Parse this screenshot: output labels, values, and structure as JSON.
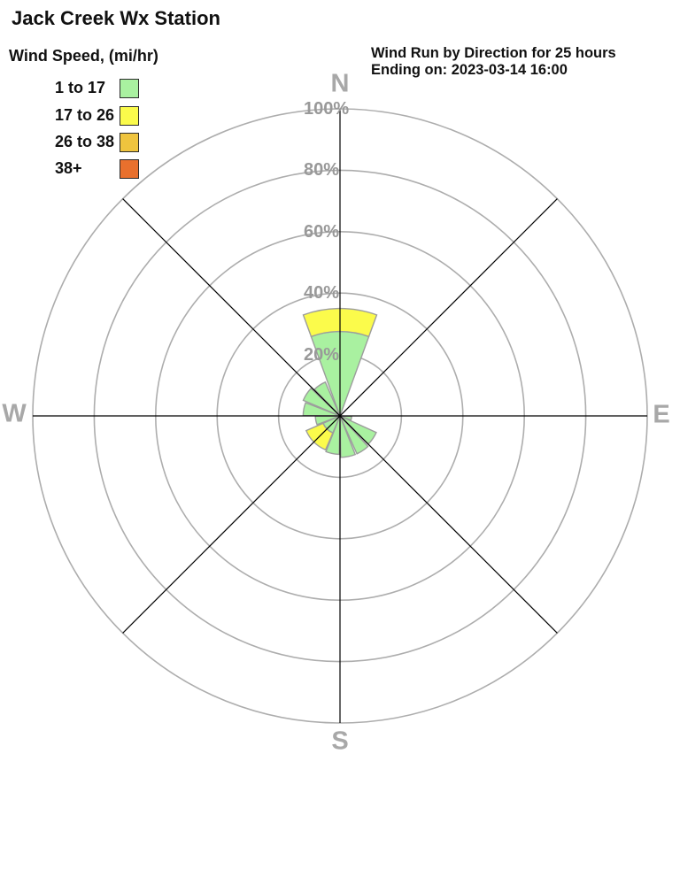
{
  "title": "Jack Creek Wx Station",
  "legend": {
    "title": "Wind Speed, (mi/hr)",
    "bins": [
      {
        "label": "1 to 17",
        "color": "#a9f1a0"
      },
      {
        "label": "17 to 26",
        "color": "#fbfb4b"
      },
      {
        "label": "26 to 38",
        "color": "#efc43e"
      },
      {
        "label": "38+",
        "color": "#e8702d"
      }
    ]
  },
  "header": {
    "line1": "Wind Run by Direction for 25 hours",
    "line2": "Ending on: 2023-03-14 16:00"
  },
  "chart_data": {
    "type": "wind-rose",
    "title": "Wind Run by Direction for 25 hours Ending on: 2023-03-14 16:00",
    "units": "percent of total wind run",
    "speed_bins_mi_hr": [
      "1 to 17",
      "17 to 26",
      "26 to 38",
      "38+"
    ],
    "ring_labels": [
      "20%",
      "40%",
      "60%",
      "80%",
      "100%"
    ],
    "ring_values": [
      20,
      40,
      60,
      80,
      100
    ],
    "max_pct": 100,
    "grid": {
      "rings": true,
      "axes_deg": [
        0,
        45,
        90,
        135,
        180,
        225,
        270,
        315
      ]
    },
    "compass_labels": {
      "n": "N",
      "e": "E",
      "s": "S",
      "w": "W"
    },
    "petals": [
      {
        "dir": "N",
        "start": -20,
        "end": 20,
        "segments": [
          {
            "bin": "1 to 17",
            "pct": 27.5
          },
          {
            "bin": "17 to 26",
            "pct": 7.5
          }
        ]
      },
      {
        "dir": "E",
        "start": 92,
        "end": 111,
        "segments": [
          {
            "bin": "1 to 17",
            "pct": 3.8
          }
        ]
      },
      {
        "dir": "SE-upper",
        "start": 114.5,
        "end": 135,
        "segments": [
          {
            "bin": "1 to 17",
            "pct": 13
          }
        ]
      },
      {
        "dir": "SE-lower",
        "start": 137.5,
        "end": 156,
        "segments": [
          {
            "bin": "1 to 17",
            "pct": 13.5
          }
        ]
      },
      {
        "dir": "SSE",
        "start": 158.5,
        "end": 179,
        "segments": [
          {
            "bin": "1 to 17",
            "pct": 13.5
          }
        ]
      },
      {
        "dir": "SSW",
        "start": 181,
        "end": 201.5,
        "segments": [
          {
            "bin": "1 to 17",
            "pct": 12.5
          }
        ]
      },
      {
        "dir": "SW",
        "start": 203,
        "end": 246.5,
        "segments": [
          {
            "bin": "1 to 17",
            "pct": 6
          },
          {
            "bin": "17 to 26",
            "pct": 6
          }
        ]
      },
      {
        "dir": "W-lower",
        "start": 249,
        "end": 269.5,
        "segments": [
          {
            "bin": "1 to 17",
            "pct": 8
          }
        ]
      },
      {
        "dir": "W-upper",
        "start": 270.5,
        "end": 291,
        "segments": [
          {
            "bin": "1 to 17",
            "pct": 12
          }
        ]
      },
      {
        "dir": "WNW",
        "start": 293,
        "end": 313.5,
        "segments": [
          {
            "bin": "1 to 17",
            "pct": 13
          }
        ]
      },
      {
        "dir": "NNW",
        "start": 316,
        "end": 336.5,
        "segments": [
          {
            "bin": "1 to 17",
            "pct": 12
          }
        ]
      }
    ],
    "totals_by_direction_pct": {
      "N": 35,
      "NE": 0,
      "E": 3.8,
      "SE": 13.2,
      "S": 13,
      "SW": 12,
      "W": 10,
      "NW": 12.5
    }
  },
  "colors": {
    "ring": "#adadad",
    "axis": "#000000",
    "petal_stroke": "#9c9d9c",
    "ring_label": "#999999",
    "compass_label": "#a8a8a8"
  }
}
